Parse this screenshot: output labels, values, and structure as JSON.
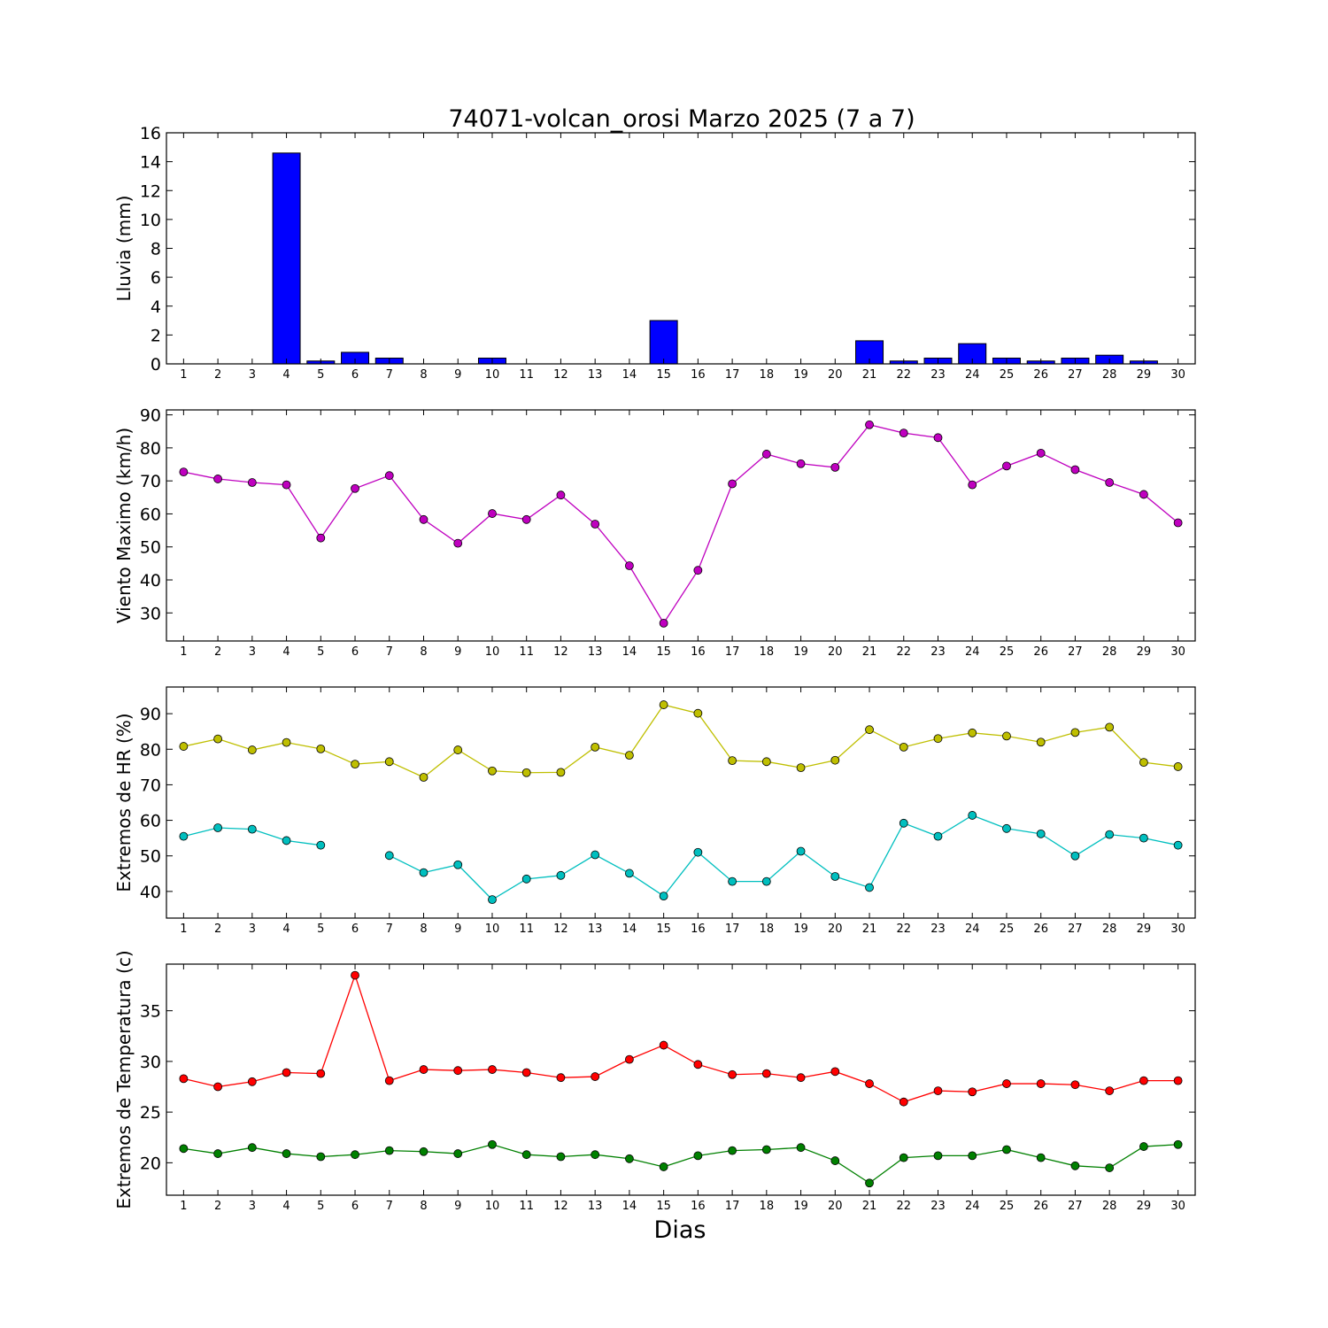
{
  "chart_data": [
    {
      "type": "bar",
      "title": "74071-volcan_orosi Marzo 2025  (7 a 7)",
      "ylabel": "Lluvia (mm)",
      "ylim": [
        0,
        16
      ],
      "yticks": [
        0,
        2,
        4,
        6,
        8,
        10,
        12,
        14,
        16
      ],
      "x": [
        1,
        2,
        3,
        4,
        5,
        6,
        7,
        8,
        9,
        10,
        11,
        12,
        13,
        14,
        15,
        16,
        17,
        18,
        19,
        20,
        21,
        22,
        23,
        24,
        25,
        26,
        27,
        28,
        29,
        30
      ],
      "series": [
        {
          "color": "#0000ff",
          "values": [
            0,
            0,
            0,
            14.6,
            0.2,
            0.8,
            0.4,
            0,
            0,
            0.4,
            0,
            0,
            0,
            0,
            3.0,
            0,
            0,
            0,
            0,
            0,
            1.6,
            0.2,
            0.4,
            1.4,
            0.4,
            0.2,
            0.4,
            0.6,
            0.2,
            0
          ]
        }
      ]
    },
    {
      "type": "line",
      "ylabel": "Viento Maximo (km/h)",
      "ylim": [
        21.5,
        91.5
      ],
      "yticks": [
        30,
        40,
        50,
        60,
        70,
        80,
        90
      ],
      "x": [
        1,
        2,
        3,
        4,
        5,
        6,
        7,
        8,
        9,
        10,
        11,
        12,
        13,
        14,
        15,
        16,
        17,
        18,
        19,
        20,
        21,
        22,
        23,
        24,
        25,
        26,
        27,
        28,
        29,
        30
      ],
      "series": [
        {
          "color": "#bf00bf",
          "values": [
            72.7,
            70.6,
            69.5,
            68.8,
            52.7,
            67.7,
            71.6,
            58.3,
            51.1,
            60.1,
            58.3,
            65.7,
            56.9,
            44.3,
            26.9,
            42.9,
            69.1,
            78.1,
            75.2,
            74.1,
            87.0,
            84.5,
            83.1,
            68.8,
            74.5,
            78.4,
            73.4,
            69.5,
            65.9,
            57.3
          ]
        }
      ]
    },
    {
      "type": "line",
      "ylabel": "Extremos de HR (%)",
      "ylim": [
        32.5,
        97.5
      ],
      "yticks": [
        40,
        50,
        60,
        70,
        80,
        90
      ],
      "x": [
        1,
        2,
        3,
        4,
        5,
        6,
        7,
        8,
        9,
        10,
        11,
        12,
        13,
        14,
        15,
        16,
        17,
        18,
        19,
        20,
        21,
        22,
        23,
        24,
        25,
        26,
        27,
        28,
        29,
        30
      ],
      "series": [
        {
          "color": "#bfbf00",
          "values": [
            80.8,
            82.9,
            79.8,
            81.9,
            80.1,
            75.8,
            76.5,
            72.1,
            79.8,
            73.9,
            73.4,
            73.5,
            80.6,
            78.3,
            92.5,
            90.1,
            76.8,
            76.5,
            74.8,
            76.9,
            85.5,
            80.6,
            83.0,
            84.6,
            83.7,
            82.0,
            84.7,
            86.2,
            76.3,
            75.1
          ]
        },
        {
          "color": "#00bfbf",
          "values": [
            55.5,
            57.9,
            57.5,
            54.3,
            53.0,
            null,
            50.1,
            45.3,
            47.5,
            37.7,
            43.5,
            44.5,
            50.3,
            45.1,
            38.7,
            51.0,
            42.8,
            42.8,
            51.3,
            44.2,
            41.1,
            59.2,
            55.5,
            61.4,
            57.7,
            56.2,
            50.0,
            56.0,
            55.0,
            53.0
          ]
        }
      ]
    },
    {
      "type": "line",
      "ylabel": "Extremos de Temperatura (c)",
      "xlabel": "Dias",
      "ylim": [
        16.8,
        39.6
      ],
      "yticks": [
        20,
        25,
        30,
        35
      ],
      "x": [
        1,
        2,
        3,
        4,
        5,
        6,
        7,
        8,
        9,
        10,
        11,
        12,
        13,
        14,
        15,
        16,
        17,
        18,
        19,
        20,
        21,
        22,
        23,
        24,
        25,
        26,
        27,
        28,
        29,
        30
      ],
      "series": [
        {
          "color": "#ff0000",
          "values": [
            28.3,
            27.5,
            28.0,
            28.9,
            28.8,
            38.5,
            28.1,
            29.2,
            29.1,
            29.2,
            28.9,
            28.4,
            28.5,
            30.2,
            31.6,
            29.7,
            28.7,
            28.8,
            28.4,
            29.0,
            27.8,
            26.0,
            27.1,
            27.0,
            27.8,
            27.8,
            27.7,
            27.1,
            28.1,
            28.1
          ]
        },
        {
          "color": "#008000",
          "values": [
            21.4,
            20.9,
            21.5,
            20.9,
            20.6,
            20.8,
            21.2,
            21.1,
            20.9,
            21.8,
            20.8,
            20.6,
            20.8,
            20.4,
            19.6,
            20.7,
            21.2,
            21.3,
            21.5,
            20.2,
            18.0,
            20.5,
            20.7,
            20.7,
            21.3,
            20.5,
            19.7,
            19.5,
            21.6,
            21.8
          ]
        }
      ]
    }
  ]
}
